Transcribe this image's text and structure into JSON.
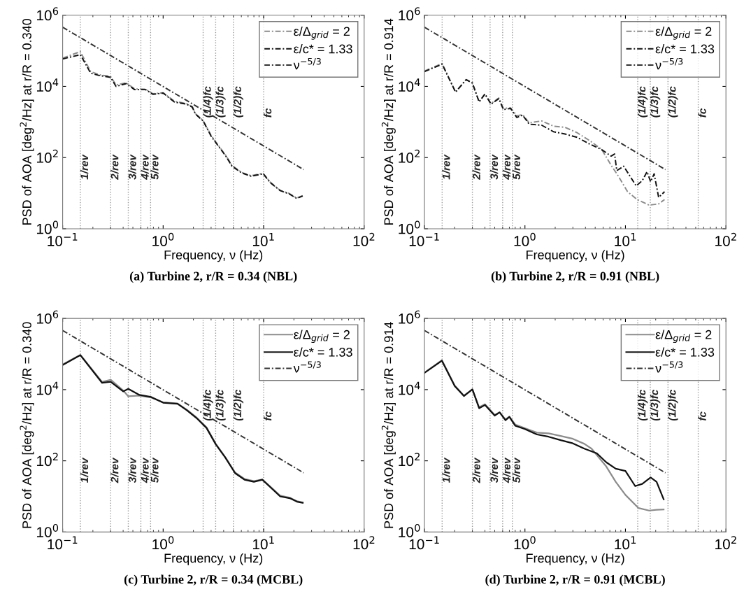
{
  "chart_data": [
    {
      "type": "line",
      "title": "(a) Turbine 2, r/R = 0.34 (NBL)",
      "xlabel": "Frequency, ν (Hz)",
      "ylabel": "PSD of AOA [deg$^{2}$/Hz] at r/R = 0.340",
      "log": "xy",
      "grid": false,
      "legend": "top right",
      "marker": "none",
      "xlim": [
        0.1,
        100
      ],
      "ylim": [
        1,
        1000000
      ],
      "xticks": [
        {
          "value": 0.1,
          "label": "10$^{−1}$"
        },
        {
          "value": 1,
          "label": "10$^{0}$"
        },
        {
          "value": 10,
          "label": "10$^{1}$"
        },
        {
          "value": 100,
          "label": "10$^{2}$"
        }
      ],
      "yticks": [
        {
          "value": 1,
          "label": "10$^{0}$"
        },
        {
          "value": 100,
          "label": "10$^{2}$"
        },
        {
          "value": 10000,
          "label": "10$^{4}$"
        },
        {
          "value": 1000000,
          "label": "10$^{6}$"
        }
      ],
      "series": [
        {
          "name": "ε/Δ$_{grid}$ = 2",
          "color": "#8c8c8c",
          "line_style": "dashed",
          "x": [
            0.1,
            0.15,
            0.19,
            0.235,
            0.3,
            0.34,
            0.43,
            0.52,
            0.67,
            0.79,
            1.0,
            1.3,
            1.7,
            1.95,
            2.1,
            2.5,
            3.0,
            3.5,
            4.2,
            4.85,
            6.05,
            7.5,
            9.9,
            11.7,
            14.6,
            18,
            21.3,
            24.5
          ],
          "values": [
            62000,
            95000,
            26000,
            21000,
            19000,
            11000,
            12500,
            8500,
            8300,
            6200,
            6600,
            3800,
            3300,
            2700,
            1700,
            1100,
            420,
            230,
            115,
            60,
            38,
            31,
            36,
            20,
            12,
            9.8,
            7.3,
            8.6
          ]
        },
        {
          "name": "ε/c* = 1.33",
          "color": "#111111",
          "line_style": "dashed",
          "x": [
            0.1,
            0.15,
            0.19,
            0.235,
            0.3,
            0.34,
            0.43,
            0.52,
            0.67,
            0.79,
            1.0,
            1.3,
            1.7,
            1.95,
            2.1,
            2.5,
            3.0,
            3.5,
            4.2,
            4.85,
            6.05,
            7.5,
            9.9,
            11.7,
            14.6,
            18,
            21.3,
            24.5
          ],
          "values": [
            59000,
            78000,
            23500,
            20000,
            18000,
            10000,
            12000,
            8100,
            8100,
            6000,
            6500,
            3600,
            3200,
            2600,
            1660,
            1070,
            400,
            220,
            110,
            57,
            37,
            30,
            35,
            19.5,
            11.8,
            9.5,
            7.1,
            8.3
          ]
        },
        {
          "name": "ν$^{−5/3}$",
          "color": "#333333",
          "line_style": "dashed",
          "x": [
            0.1,
            25
          ],
          "values": [
            460000,
            46
          ]
        }
      ],
      "ref_lines": [
        {
          "axis": "x",
          "value": 0.15,
          "label": "1/rev",
          "color": "#9a9a9a",
          "line_style": "dotted"
        },
        {
          "axis": "x",
          "value": 0.3,
          "label": "2/rev",
          "color": "#9a9a9a",
          "line_style": "dotted"
        },
        {
          "axis": "x",
          "value": 0.45,
          "label": "3/rev",
          "color": "#9a9a9a",
          "line_style": "dotted"
        },
        {
          "axis": "x",
          "value": 0.6,
          "label": "4/rev",
          "color": "#9a9a9a",
          "line_style": "dotted"
        },
        {
          "axis": "x",
          "value": 0.75,
          "label": "5/rev",
          "color": "#9a9a9a",
          "line_style": "dotted"
        },
        {
          "axis": "x",
          "value": 2.5,
          "label": "(1/4)fc",
          "color": "#9a9a9a",
          "line_style": "dotted"
        },
        {
          "axis": "x",
          "value": 3.33,
          "label": "(1/3)fc",
          "color": "#9a9a9a",
          "line_style": "dotted"
        },
        {
          "axis": "x",
          "value": 5,
          "label": "(1/2)fc",
          "color": "#9a9a9a",
          "line_style": "dotted"
        },
        {
          "axis": "x",
          "value": 10,
          "label": "fc",
          "color": "#9a9a9a",
          "line_style": "dotted"
        }
      ]
    },
    {
      "type": "line",
      "title": "(b) Turbine 2, r/R = 0.91 (NBL)",
      "xlabel": "Frequency, ν (Hz)",
      "ylabel": "PSD of AOA [deg$^{2}$/Hz] at r/R = 0.914",
      "log": "xy",
      "grid": false,
      "legend": "top right",
      "marker": "none",
      "xlim": [
        0.1,
        100
      ],
      "ylim": [
        1,
        1000000
      ],
      "xticks": [
        {
          "value": 0.1,
          "label": "10$^{−1}$"
        },
        {
          "value": 1,
          "label": "10$^{0}$"
        },
        {
          "value": 10,
          "label": "10$^{1}$"
        },
        {
          "value": 100,
          "label": "10$^{2}$"
        }
      ],
      "yticks": [
        {
          "value": 1,
          "label": "10$^{0}$"
        },
        {
          "value": 100,
          "label": "10$^{2}$"
        },
        {
          "value": 10000,
          "label": "10$^{4}$"
        },
        {
          "value": 1000000,
          "label": "10$^{6}$"
        }
      ],
      "series": [
        {
          "name": "ε/Δ$_{grid}$ = 2",
          "color": "#8c8c8c",
          "line_style": "dashed",
          "x": [
            0.1,
            0.15,
            0.204,
            0.26,
            0.3,
            0.35,
            0.4,
            0.46,
            0.55,
            0.61,
            0.72,
            0.83,
            0.95,
            1.1,
            1.47,
            1.93,
            2.5,
            3.3,
            4.4,
            5.8,
            7.2,
            8.5,
            10.5,
            13.1,
            17.2,
            21.4,
            24.5
          ],
          "values": [
            27000,
            44000,
            7000,
            15500,
            12400,
            3700,
            6100,
            3300,
            4700,
            2400,
            2500,
            1500,
            1600,
            950,
            1070,
            760,
            710,
            500,
            300,
            170,
            61,
            30,
            11,
            6.6,
            4.6,
            5,
            6.6
          ]
        },
        {
          "name": "ε/c* = 1.33",
          "color": "#111111",
          "line_style": "dashed",
          "x": [
            0.1,
            0.15,
            0.204,
            0.26,
            0.3,
            0.35,
            0.4,
            0.46,
            0.55,
            0.61,
            0.72,
            0.83,
            0.95,
            1.1,
            1.47,
            1.93,
            2.5,
            3.3,
            4.4,
            5.8,
            7.2,
            7.8,
            8.2,
            9.6,
            11.1,
            12.8,
            14.7,
            16.4,
            17.8,
            19.3,
            21.4,
            24.5
          ],
          "values": [
            26000,
            42000,
            6900,
            15500,
            12400,
            3650,
            6100,
            3150,
            4550,
            2230,
            2400,
            1340,
            1550,
            870,
            810,
            530,
            460,
            370,
            240,
            167,
            110,
            126,
            43,
            57,
            30,
            16,
            22.5,
            40,
            21,
            35,
            7.6,
            11
          ]
        },
        {
          "name": "ν$^{−5/3}$",
          "color": "#333333",
          "line_style": "dashed",
          "x": [
            0.1,
            25
          ],
          "values": [
            460000,
            46
          ]
        }
      ],
      "ref_lines": [
        {
          "axis": "x",
          "value": 0.15,
          "label": "1/rev",
          "color": "#9a9a9a",
          "line_style": "dotted"
        },
        {
          "axis": "x",
          "value": 0.3,
          "label": "2/rev",
          "color": "#9a9a9a",
          "line_style": "dotted"
        },
        {
          "axis": "x",
          "value": 0.45,
          "label": "3/rev",
          "color": "#9a9a9a",
          "line_style": "dotted"
        },
        {
          "axis": "x",
          "value": 0.6,
          "label": "4/rev",
          "color": "#9a9a9a",
          "line_style": "dotted"
        },
        {
          "axis": "x",
          "value": 0.75,
          "label": "5/rev",
          "color": "#9a9a9a",
          "line_style": "dotted"
        },
        {
          "axis": "x",
          "value": 13.25,
          "label": "(1/4)fc",
          "color": "#9a9a9a",
          "line_style": "dotted"
        },
        {
          "axis": "x",
          "value": 17.67,
          "label": "(1/3)fc",
          "color": "#9a9a9a",
          "line_style": "dotted"
        },
        {
          "axis": "x",
          "value": 26.5,
          "label": "(1/2)fc",
          "color": "#9a9a9a",
          "line_style": "dotted"
        },
        {
          "axis": "x",
          "value": 53,
          "label": "fc",
          "color": "#9a9a9a",
          "line_style": "dotted"
        }
      ]
    },
    {
      "type": "line",
      "title": "(c) Turbine 2, r/R = 0.34 (MCBL)",
      "xlabel": "Frequency, ν (Hz)",
      "ylabel": "PSD of AOA [deg$^{2}$/Hz] at r/R = 0.340",
      "log": "xy",
      "grid": false,
      "legend": "top right",
      "marker": "none",
      "xlim": [
        0.1,
        100
      ],
      "ylim": [
        1,
        1000000
      ],
      "xticks": [
        {
          "value": 0.1,
          "label": "10$^{−1}$"
        },
        {
          "value": 1,
          "label": "10$^{0}$"
        },
        {
          "value": 10,
          "label": "10$^{1}$"
        },
        {
          "value": 100,
          "label": "10$^{2}$"
        }
      ],
      "yticks": [
        {
          "value": 1,
          "label": "10$^{0}$"
        },
        {
          "value": 100,
          "label": "10$^{2}$"
        },
        {
          "value": 10000,
          "label": "10$^{4}$"
        },
        {
          "value": 1000000,
          "label": "10$^{6}$"
        }
      ],
      "series": [
        {
          "name": "ε/Δ$_{grid}$ = 2",
          "color": "#8c8c8c",
          "line_style": "solid",
          "x": [
            0.1,
            0.15,
            0.247,
            0.3,
            0.4,
            0.45,
            0.58,
            0.76,
            1.0,
            1.39,
            1.73,
            2.15,
            2.7,
            3.34,
            4.16,
            5.2,
            6.45,
            8.0,
            9.7,
            11.7,
            14.6,
            18.2,
            21.5,
            24.5
          ],
          "values": [
            51000,
            95000,
            16500,
            19000,
            9500,
            6500,
            6800,
            6000,
            4400,
            4100,
            2700,
            1650,
            870,
            300,
            125,
            47,
            31,
            27,
            30,
            18.5,
            10.5,
            9.2,
            7.3,
            6.8
          ]
        },
        {
          "name": "ε/c* = 1.33",
          "color": "#111111",
          "line_style": "solid",
          "x": [
            0.1,
            0.15,
            0.247,
            0.3,
            0.4,
            0.45,
            0.58,
            0.76,
            1.0,
            1.39,
            1.73,
            2.15,
            2.7,
            3.34,
            4.16,
            5.2,
            6.45,
            8.0,
            9.7,
            11.7,
            14.6,
            18.2,
            21.5,
            24.5
          ],
          "values": [
            49000,
            93000,
            15500,
            16700,
            8900,
            10500,
            7100,
            6200,
            4300,
            4000,
            2600,
            1590,
            840,
            290,
            123,
            45,
            29.5,
            25.7,
            29.5,
            18,
            10,
            8.9,
            7.1,
            6.6
          ]
        },
        {
          "name": "ν$^{−5/3}$",
          "color": "#333333",
          "line_style": "dashed",
          "x": [
            0.1,
            25
          ],
          "values": [
            460000,
            46
          ]
        }
      ],
      "ref_lines": [
        {
          "axis": "x",
          "value": 0.15,
          "label": "1/rev",
          "color": "#9a9a9a",
          "line_style": "dotted"
        },
        {
          "axis": "x",
          "value": 0.3,
          "label": "2/rev",
          "color": "#9a9a9a",
          "line_style": "dotted"
        },
        {
          "axis": "x",
          "value": 0.45,
          "label": "3/rev",
          "color": "#9a9a9a",
          "line_style": "dotted"
        },
        {
          "axis": "x",
          "value": 0.6,
          "label": "4/rev",
          "color": "#9a9a9a",
          "line_style": "dotted"
        },
        {
          "axis": "x",
          "value": 0.75,
          "label": "5/rev",
          "color": "#9a9a9a",
          "line_style": "dotted"
        },
        {
          "axis": "x",
          "value": 2.5,
          "label": "(1/4)fc",
          "color": "#9a9a9a",
          "line_style": "dotted"
        },
        {
          "axis": "x",
          "value": 3.33,
          "label": "(1/3)fc",
          "color": "#9a9a9a",
          "line_style": "dotted"
        },
        {
          "axis": "x",
          "value": 5,
          "label": "(1/2)fc",
          "color": "#9a9a9a",
          "line_style": "dotted"
        },
        {
          "axis": "x",
          "value": 10,
          "label": "fc",
          "color": "#9a9a9a",
          "line_style": "dotted"
        }
      ]
    },
    {
      "type": "line",
      "title": "(d) Turbine 2, r/R = 0.91 (MCBL)",
      "xlabel": "Frequency, ν (Hz)",
      "ylabel": "PSD of AOA [deg$^{2}$/Hz] at r/R = 0.914",
      "log": "xy",
      "grid": false,
      "legend": "top right",
      "marker": "none",
      "xlim": [
        0.1,
        100
      ],
      "ylim": [
        1,
        1000000
      ],
      "xticks": [
        {
          "value": 0.1,
          "label": "10$^{−1}$"
        },
        {
          "value": 1,
          "label": "10$^{0}$"
        },
        {
          "value": 10,
          "label": "10$^{1}$"
        },
        {
          "value": 100,
          "label": "10$^{2}$"
        }
      ],
      "yticks": [
        {
          "value": 1,
          "label": "10$^{0}$"
        },
        {
          "value": 100,
          "label": "10$^{2}$"
        },
        {
          "value": 10000,
          "label": "10$^{4}$"
        },
        {
          "value": 1000000,
          "label": "10$^{6}$"
        }
      ],
      "series": [
        {
          "name": "ε/Δ$_{grid}$ = 2",
          "color": "#8c8c8c",
          "line_style": "solid",
          "x": [
            0.1,
            0.149,
            0.2,
            0.247,
            0.3,
            0.35,
            0.4,
            0.5,
            0.56,
            0.64,
            0.7,
            0.8,
            1.0,
            1.32,
            1.72,
            2.27,
            3.0,
            3.9,
            4.6,
            6.45,
            8.0,
            10,
            13.5,
            17.2,
            20.4,
            24
          ],
          "values": [
            30000,
            67000,
            13000,
            6800,
            10000,
            3200,
            3900,
            1950,
            2300,
            1450,
            1750,
            1050,
            820,
            620,
            590,
            500,
            415,
            300,
            220,
            69,
            25.7,
            11,
            4.7,
            4.0,
            4.2,
            4.3
          ]
        },
        {
          "name": "ε/c* = 1.33",
          "color": "#111111",
          "line_style": "solid",
          "x": [
            0.1,
            0.149,
            0.2,
            0.247,
            0.3,
            0.35,
            0.4,
            0.5,
            0.56,
            0.64,
            0.7,
            0.8,
            1.0,
            1.32,
            1.72,
            2.27,
            3.0,
            3.9,
            5.2,
            6.45,
            8.0,
            10,
            12.5,
            14.7,
            17.8,
            20.4,
            24
          ],
          "values": [
            29500,
            65000,
            12600,
            6600,
            10200,
            3000,
            3700,
            1860,
            2300,
            1380,
            1710,
            970,
            780,
            550,
            475,
            380,
            310,
            220,
            162,
            91,
            60,
            52,
            19.5,
            22.4,
            34,
            25.7,
            8.3
          ]
        },
        {
          "name": "ν$^{−5/3}$",
          "color": "#333333",
          "line_style": "dashed",
          "x": [
            0.1,
            25
          ],
          "values": [
            460000,
            46
          ]
        }
      ],
      "ref_lines": [
        {
          "axis": "x",
          "value": 0.15,
          "label": "1/rev",
          "color": "#9a9a9a",
          "line_style": "dotted"
        },
        {
          "axis": "x",
          "value": 0.3,
          "label": "2/rev",
          "color": "#9a9a9a",
          "line_style": "dotted"
        },
        {
          "axis": "x",
          "value": 0.45,
          "label": "3/rev",
          "color": "#9a9a9a",
          "line_style": "dotted"
        },
        {
          "axis": "x",
          "value": 0.6,
          "label": "4/rev",
          "color": "#9a9a9a",
          "line_style": "dotted"
        },
        {
          "axis": "x",
          "value": 0.75,
          "label": "5/rev",
          "color": "#9a9a9a",
          "line_style": "dotted"
        },
        {
          "axis": "x",
          "value": 13.25,
          "label": "(1/4)fc",
          "color": "#9a9a9a",
          "line_style": "dotted"
        },
        {
          "axis": "x",
          "value": 17.67,
          "label": "(1/3)fc",
          "color": "#9a9a9a",
          "line_style": "dotted"
        },
        {
          "axis": "x",
          "value": 26.5,
          "label": "(1/2)fc",
          "color": "#9a9a9a",
          "line_style": "dotted"
        },
        {
          "axis": "x",
          "value": 53,
          "label": "fc",
          "color": "#9a9a9a",
          "line_style": "dotted"
        }
      ]
    }
  ]
}
